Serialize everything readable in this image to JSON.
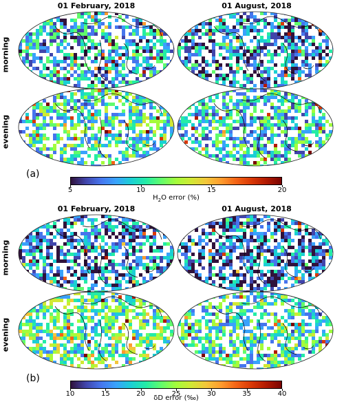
{
  "panels": [
    {
      "id": "a",
      "label": "(a)",
      "columns": [
        "01 February, 2018",
        "01 August, 2018"
      ],
      "rows": [
        "morning",
        "evening"
      ],
      "colorbar": {
        "label_prefix": "H",
        "label_sub": "2",
        "label_suffix": "O error (%)",
        "min": 5,
        "max": 20,
        "ticks": [
          "5",
          "10",
          "15",
          "20"
        ]
      }
    },
    {
      "id": "b",
      "label": "(b)",
      "columns": [
        "01 February, 2018",
        "01 August, 2018"
      ],
      "rows": [
        "morning",
        "evening"
      ],
      "colorbar": {
        "label_prefix": "",
        "label_sub": "",
        "label_suffix": "δD error (‰)",
        "min": 10,
        "max": 40,
        "ticks": [
          "10",
          "15",
          "20",
          "25",
          "30",
          "35",
          "40"
        ]
      }
    }
  ],
  "colormap": [
    "#30123b",
    "#4145ab",
    "#4675ed",
    "#39a2fc",
    "#1bcfd4",
    "#24eca6",
    "#61fc6c",
    "#a4fc3b",
    "#d1e834",
    "#f3c63a",
    "#fe9b2d",
    "#f36315",
    "#d93806",
    "#b11901",
    "#7a0403"
  ]
}
